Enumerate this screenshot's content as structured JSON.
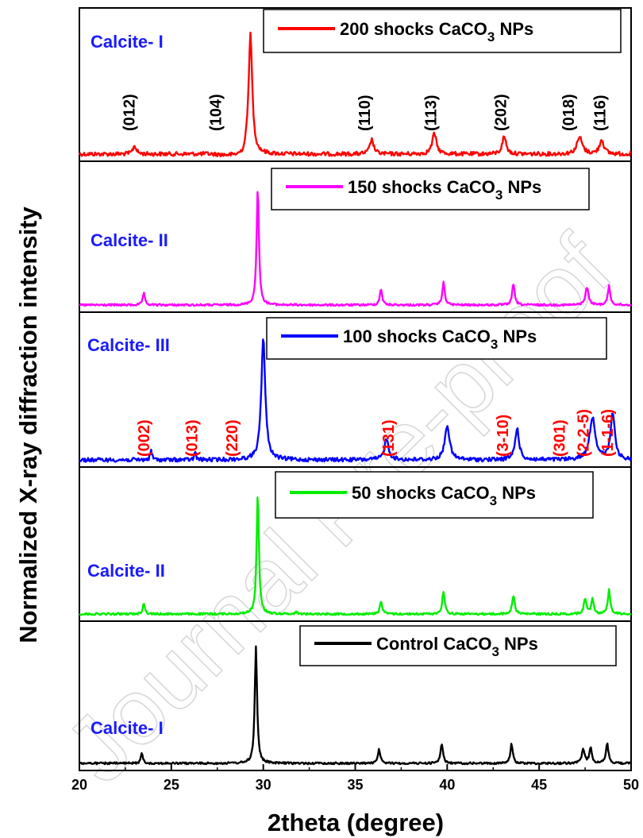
{
  "chart_data": {
    "type": "line",
    "xlabel": "2theta (degree)",
    "ylabel": "Normalized X-ray diffraction intensity",
    "xlim": [
      20,
      50
    ],
    "xticks": [
      20,
      25,
      30,
      35,
      40,
      45,
      50
    ],
    "watermark": "Journal Pre-proof",
    "panels": [
      {
        "legend": {
          "main": "200 shocks CaCO",
          "sub": "3",
          "tail": " NPs"
        },
        "color": "#ff0000",
        "phase": "Calcite- I",
        "peaks": [
          {
            "x": 23.0,
            "h": 0.07,
            "w": 0.22
          },
          {
            "x": 29.3,
            "h": 1.0,
            "w": 0.24
          },
          {
            "x": 35.9,
            "h": 0.12,
            "w": 0.25
          },
          {
            "x": 39.3,
            "h": 0.17,
            "w": 0.28
          },
          {
            "x": 43.1,
            "h": 0.15,
            "w": 0.25
          },
          {
            "x": 47.2,
            "h": 0.14,
            "w": 0.35
          },
          {
            "x": 48.4,
            "h": 0.12,
            "w": 0.28
          }
        ],
        "miller": [
          {
            "label": "(012)",
            "x": 23.0,
            "color": "#000000"
          },
          {
            "label": "(104)",
            "x": 27.7,
            "color": "#000000"
          },
          {
            "label": "(110)",
            "x": 35.8,
            "color": "#000000"
          },
          {
            "label": "(113)",
            "x": 39.4,
            "color": "#000000"
          },
          {
            "label": "(202)",
            "x": 43.2,
            "color": "#000000"
          },
          {
            "label": "(018)",
            "x": 46.9,
            "color": "#000000"
          },
          {
            "label": "(116)",
            "x": 48.6,
            "color": "#000000"
          }
        ]
      },
      {
        "legend": {
          "main": "150 shocks CaCO",
          "sub": "3",
          "tail": " NPs"
        },
        "color": "#ff00ff",
        "phase": "Calcite- II",
        "peaks": [
          {
            "x": 23.5,
            "h": 0.1,
            "w": 0.14
          },
          {
            "x": 29.7,
            "h": 1.0,
            "w": 0.15
          },
          {
            "x": 36.4,
            "h": 0.14,
            "w": 0.15
          },
          {
            "x": 39.8,
            "h": 0.19,
            "w": 0.16
          },
          {
            "x": 43.6,
            "h": 0.18,
            "w": 0.16
          },
          {
            "x": 47.6,
            "h": 0.15,
            "w": 0.2
          },
          {
            "x": 48.8,
            "h": 0.16,
            "w": 0.16
          }
        ],
        "miller": []
      },
      {
        "legend": {
          "main": "100 shocks CaCO",
          "sub": "3",
          "tail": " NPs"
        },
        "color": "#0000ff",
        "phase": "Calcite- III",
        "peaks": [
          {
            "x": 23.9,
            "h": 0.08,
            "w": 0.12
          },
          {
            "x": 26.3,
            "h": 0.07,
            "w": 0.1
          },
          {
            "x": 30.0,
            "h": 1.0,
            "w": 0.26
          },
          {
            "x": 36.7,
            "h": 0.17,
            "w": 0.28
          },
          {
            "x": 40.0,
            "h": 0.29,
            "w": 0.3
          },
          {
            "x": 43.8,
            "h": 0.26,
            "w": 0.26
          },
          {
            "x": 47.9,
            "h": 0.35,
            "w": 0.38
          },
          {
            "x": 49.0,
            "h": 0.39,
            "w": 0.26
          }
        ],
        "miller": [
          {
            "label": "(002)",
            "x": 23.8,
            "color": "#ff0000"
          },
          {
            "label": "(013)",
            "x": 26.4,
            "color": "#ff0000"
          },
          {
            "label": "(220)",
            "x": 28.6,
            "color": "#ff0000"
          },
          {
            "label": "(131)",
            "x": 37.1,
            "color": "#ff0000"
          },
          {
            "label": "(3-10)",
            "x": 43.3,
            "color": "#ff0000"
          },
          {
            "label": "(301)",
            "x": 46.4,
            "color": "#ff0000"
          },
          {
            "label": "(2-2-5)",
            "x": 47.7,
            "color": "#ff0000"
          },
          {
            "label": "(1-1-6)",
            "x": 49.0,
            "color": "#ff0000"
          }
        ]
      },
      {
        "legend": {
          "main": "50 shocks CaCO",
          "sub": "3",
          "tail": " NPs"
        },
        "color": "#00ee00",
        "phase": "Calcite- II",
        "peaks": [
          {
            "x": 23.5,
            "h": 0.09,
            "w": 0.14
          },
          {
            "x": 29.7,
            "h": 1.0,
            "w": 0.15
          },
          {
            "x": 31.8,
            "h": 0.02,
            "w": 0.12
          },
          {
            "x": 36.4,
            "h": 0.11,
            "w": 0.15
          },
          {
            "x": 39.8,
            "h": 0.19,
            "w": 0.16
          },
          {
            "x": 43.6,
            "h": 0.16,
            "w": 0.16
          },
          {
            "x": 47.5,
            "h": 0.13,
            "w": 0.16
          },
          {
            "x": 47.9,
            "h": 0.13,
            "w": 0.16
          },
          {
            "x": 48.8,
            "h": 0.2,
            "w": 0.16
          }
        ],
        "miller": []
      },
      {
        "legend": {
          "main": "Control CaCO",
          "sub": "3",
          "tail": " NPs"
        },
        "color": "#000000",
        "phase": "Calcite- I",
        "peaks": [
          {
            "x": 23.4,
            "h": 0.09,
            "w": 0.13
          },
          {
            "x": 29.6,
            "h": 1.0,
            "w": 0.15
          },
          {
            "x": 36.3,
            "h": 0.12,
            "w": 0.15
          },
          {
            "x": 39.7,
            "h": 0.17,
            "w": 0.16
          },
          {
            "x": 43.5,
            "h": 0.17,
            "w": 0.15
          },
          {
            "x": 47.4,
            "h": 0.12,
            "w": 0.18
          },
          {
            "x": 47.8,
            "h": 0.14,
            "w": 0.16
          },
          {
            "x": 48.7,
            "h": 0.17,
            "w": 0.16
          }
        ],
        "miller": []
      }
    ]
  }
}
